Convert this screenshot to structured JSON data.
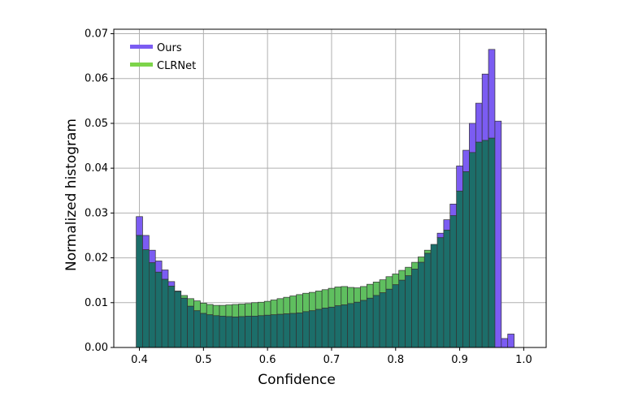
{
  "chart_data": {
    "type": "bar",
    "subtype": "overlaid-histogram",
    "xlabel": "Confidence",
    "ylabel": "Normalized histogram",
    "xlim": [
      0.36,
      1.035
    ],
    "ylim": [
      0.0,
      0.071
    ],
    "xticks": [
      0.4,
      0.5,
      0.6,
      0.7,
      0.8,
      0.9,
      1.0
    ],
    "xtick_labels": [
      "0.4",
      "0.5",
      "0.6",
      "0.7",
      "0.8",
      "0.9",
      "1.0"
    ],
    "yticks": [
      0.0,
      0.01,
      0.02,
      0.03,
      0.04,
      0.05,
      0.06,
      0.07
    ],
    "ytick_labels": [
      "0.00",
      "0.01",
      "0.02",
      "0.03",
      "0.04",
      "0.05",
      "0.06",
      "0.07"
    ],
    "grid": true,
    "legend_position": "top-left",
    "bin_start": 0.395,
    "bin_width": 0.01,
    "series": [
      {
        "name": "Ours",
        "color": "#7b5cf2",
        "values": [
          0.0292,
          0.025,
          0.0217,
          0.0193,
          0.0173,
          0.0147,
          0.0125,
          0.011,
          0.0092,
          0.0082,
          0.0076,
          0.0073,
          0.0071,
          0.007,
          0.0069,
          0.0068,
          0.0069,
          0.007,
          0.007,
          0.0071,
          0.0072,
          0.0073,
          0.0074,
          0.0075,
          0.0076,
          0.0077,
          0.008,
          0.0082,
          0.0085,
          0.0088,
          0.009,
          0.0093,
          0.0095,
          0.0098,
          0.0101,
          0.0105,
          0.011,
          0.0116,
          0.0122,
          0.013,
          0.014,
          0.015,
          0.016,
          0.0175,
          0.019,
          0.021,
          0.023,
          0.0255,
          0.0285,
          0.032,
          0.0405,
          0.044,
          0.05,
          0.0545,
          0.061,
          0.0665,
          0.0505,
          0.002,
          0.003
        ]
      },
      {
        "name": "CLRNet",
        "color": "#5fbf5f",
        "values": [
          0.025,
          0.0218,
          0.0189,
          0.0168,
          0.0152,
          0.0137,
          0.0126,
          0.0116,
          0.0109,
          0.0104,
          0.0099,
          0.0096,
          0.0094,
          0.0094,
          0.0095,
          0.0096,
          0.0097,
          0.0098,
          0.01,
          0.0101,
          0.0103,
          0.0106,
          0.0109,
          0.0112,
          0.0115,
          0.0118,
          0.0121,
          0.0123,
          0.0126,
          0.0129,
          0.0132,
          0.0135,
          0.0136,
          0.0134,
          0.0133,
          0.0136,
          0.0141,
          0.0146,
          0.0151,
          0.0158,
          0.0164,
          0.0172,
          0.0179,
          0.019,
          0.0202,
          0.0217,
          0.023,
          0.0245,
          0.0262,
          0.0294,
          0.0349,
          0.0392,
          0.0435,
          0.0458,
          0.0462,
          0.0467,
          0.0,
          0.0,
          0.0
        ]
      }
    ],
    "overlap_color": "#1c6e6a"
  }
}
